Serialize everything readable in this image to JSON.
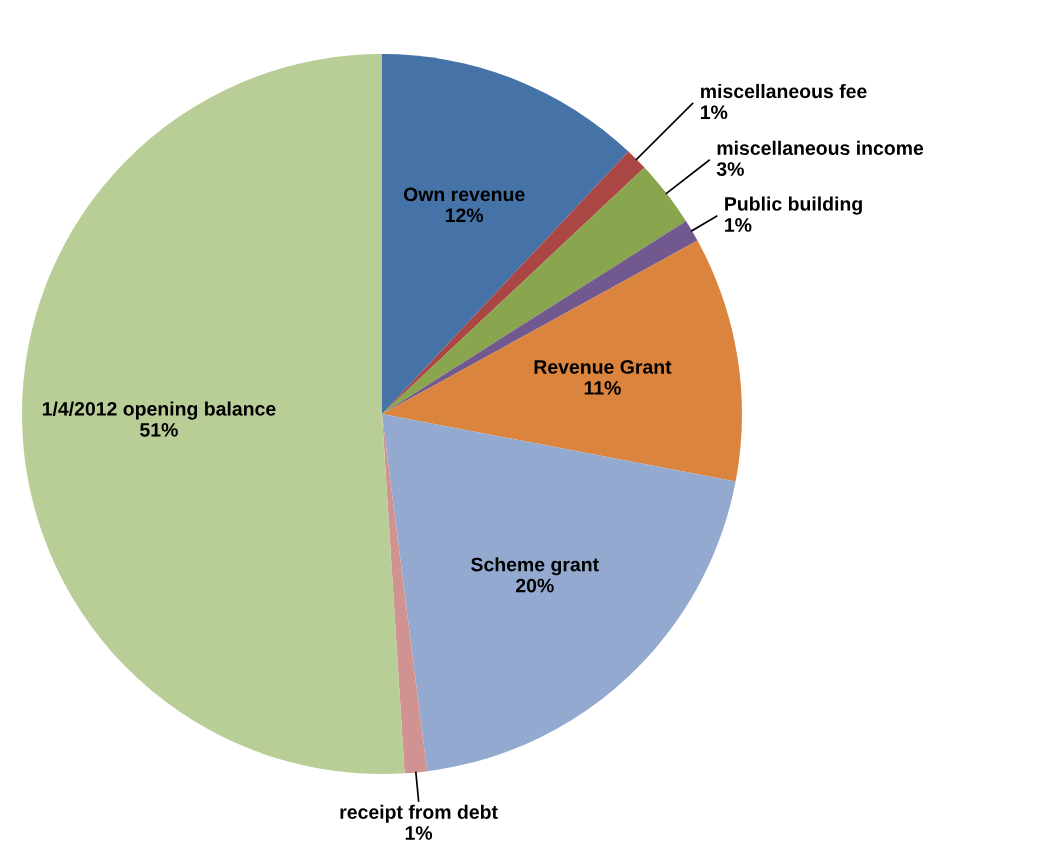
{
  "chart_data": {
    "type": "pie",
    "categories": [
      "Own revenue",
      "miscellaneous fee",
      "miscellaneous income",
      "Public building",
      "Revenue Grant",
      "Scheme grant",
      "receipt from debt",
      "1/4/2012 opening balance"
    ],
    "values": [
      12,
      1,
      3,
      1,
      11,
      20,
      1,
      51
    ],
    "colors": [
      "#4572a7",
      "#aa4643",
      "#89a54e",
      "#71588f",
      "#db843d",
      "#93a9cf",
      "#d19392",
      "#b9cd96"
    ],
    "value_labels": [
      "12%",
      "1%",
      "3%",
      "1%",
      "11%",
      "20%",
      "1%",
      "51%"
    ],
    "legend": false
  }
}
